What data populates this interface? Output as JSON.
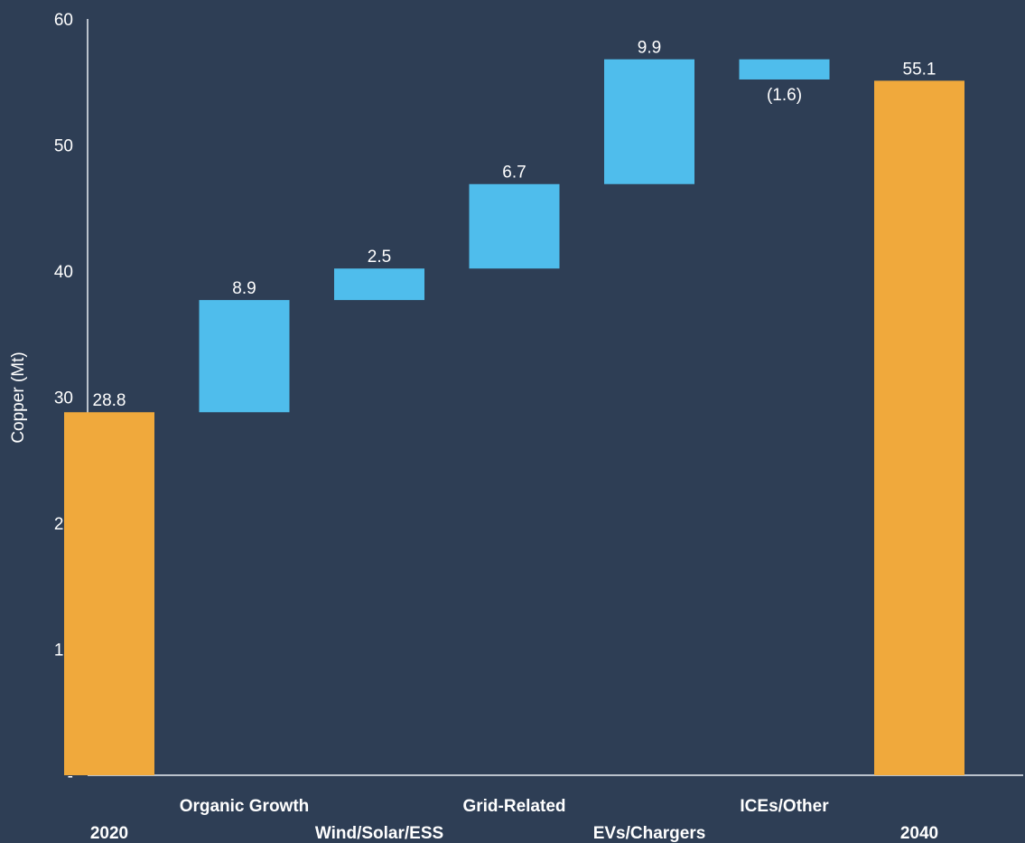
{
  "chart_data": {
    "type": "bar",
    "subtype": "waterfall",
    "ylabel": "Copper (Mt)",
    "ylim": [
      0,
      60
    ],
    "yticks": [
      0,
      10,
      20,
      30,
      40,
      50,
      60
    ],
    "ytick_labels": [
      "-",
      "10",
      "20",
      "30",
      "40",
      "50",
      "60"
    ],
    "categories": [
      "2020",
      "Organic Growth",
      "Wind/Solar/ESS",
      "Grid-Related",
      "EVs/Chargers",
      "ICEs/Other",
      "2040"
    ],
    "values": [
      28.8,
      8.9,
      2.5,
      6.7,
      9.9,
      -1.6,
      55.1
    ],
    "bar_kinds": [
      "total",
      "delta",
      "delta",
      "delta",
      "delta",
      "delta",
      "total"
    ],
    "data_labels": [
      "28.8",
      "8.9",
      "2.5",
      "6.7",
      "9.9",
      "(1.6)",
      "55.1"
    ],
    "colors": {
      "total": "#f0a93c",
      "delta": "#4fbdec",
      "background": "#2e3e55",
      "axis": "#e8edf3"
    },
    "grid": false,
    "legend": "none"
  }
}
